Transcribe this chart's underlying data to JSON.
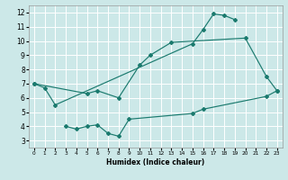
{
  "xlabel": "Humidex (Indice chaleur)",
  "bg_color": "#cce8e8",
  "grid_color": "#ffffff",
  "line_color": "#1a7a6e",
  "xlim": [
    -0.5,
    23.5
  ],
  "ylim": [
    2.5,
    12.5
  ],
  "xticks": [
    0,
    1,
    2,
    3,
    4,
    5,
    6,
    7,
    8,
    9,
    10,
    11,
    12,
    13,
    14,
    15,
    16,
    17,
    18,
    19,
    20,
    21,
    22,
    23
  ],
  "yticks": [
    3,
    4,
    5,
    6,
    7,
    8,
    9,
    10,
    11,
    12
  ],
  "curve1": {
    "x": [
      0,
      1,
      2,
      15,
      16,
      17,
      18,
      19
    ],
    "y": [
      7.0,
      6.7,
      5.5,
      9.8,
      10.8,
      11.9,
      11.8,
      11.5
    ]
  },
  "curve2": {
    "x": [
      0,
      5,
      6,
      8,
      10,
      11,
      13,
      20,
      22,
      23
    ],
    "y": [
      7.0,
      6.3,
      6.5,
      6.0,
      8.3,
      9.0,
      9.9,
      10.2,
      7.5,
      6.5
    ]
  },
  "curve3": {
    "x": [
      3,
      4,
      5,
      6,
      7,
      8,
      9,
      15,
      16,
      22,
      23
    ],
    "y": [
      4.0,
      3.8,
      4.0,
      4.1,
      3.5,
      3.3,
      4.5,
      4.9,
      5.2,
      6.1,
      6.5
    ]
  }
}
